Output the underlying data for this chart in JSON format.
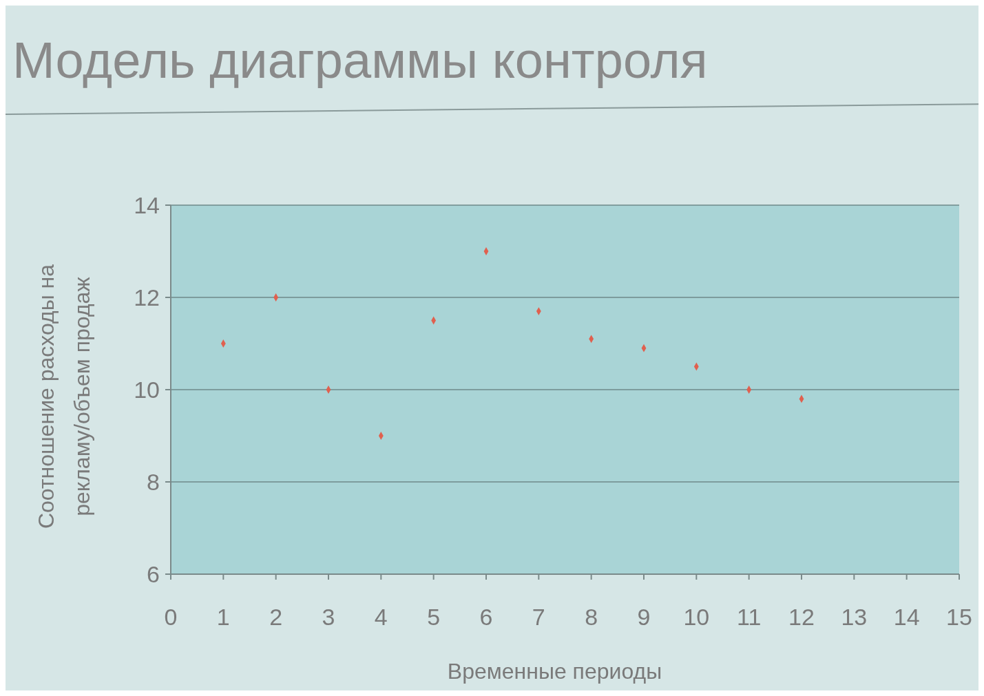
{
  "chart_data": {
    "type": "scatter",
    "title": "Модель диаграммы контроля",
    "xlabel": "Временные периоды",
    "ylabel": "Соотношение расходы на рекламу/объем продаж",
    "x": [
      1,
      2,
      3,
      4,
      5,
      6,
      7,
      8,
      9,
      10,
      11,
      12
    ],
    "series": [
      {
        "color": "#e0604f",
        "values": [
          11,
          12,
          10,
          9,
          11.5,
          13,
          11.7,
          11.1,
          10.9,
          10.5,
          10,
          9.8
        ]
      }
    ],
    "xlim": [
      0,
      15
    ],
    "xticks": [
      0,
      1,
      2,
      3,
      4,
      5,
      6,
      7,
      8,
      9,
      10,
      11,
      12,
      13,
      14,
      15
    ],
    "ylim": [
      6,
      14
    ],
    "yticks": [
      6,
      8,
      10,
      12,
      14
    ],
    "grid": "y",
    "marker": "diamond"
  }
}
